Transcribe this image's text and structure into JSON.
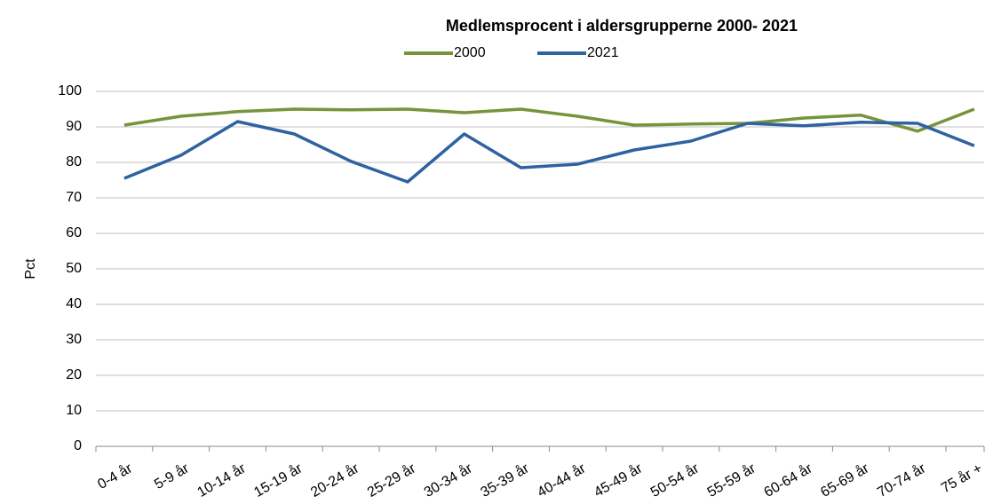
{
  "chart_data": {
    "type": "line",
    "title": "Medlemsprocent i aldersgrupperne 2000- 2021",
    "y_label": "Pct",
    "categories": [
      "0-4 år",
      "5-9 år",
      "10-14 år",
      "15-19 år",
      "20-24 år",
      "25-29 år",
      "30-34 år",
      "35-39 år",
      "40-44 år",
      "45-49 år",
      "50-54 år",
      "55-59 år",
      "60-64 år",
      "65-69 år",
      "70-74 år",
      "75 år +"
    ],
    "series": [
      {
        "name": "2000",
        "color": "#77933c",
        "values": [
          90.5,
          93,
          94.3,
          95,
          94.8,
          95,
          94,
          95,
          93,
          90.5,
          90.8,
          91,
          92.5,
          93.3,
          88.8,
          95
        ]
      },
      {
        "name": "2021",
        "color": "#2e62a1",
        "values": [
          75.5,
          82,
          91.5,
          88,
          80.3,
          74.5,
          88,
          78.5,
          79.5,
          83.5,
          86,
          91,
          90.3,
          91.3,
          91,
          84.7
        ]
      }
    ],
    "ylim": [
      0,
      100
    ],
    "yticks": [
      0,
      10,
      20,
      30,
      40,
      50,
      60,
      70,
      80,
      90,
      100
    ],
    "grid": true,
    "legend": "top"
  }
}
